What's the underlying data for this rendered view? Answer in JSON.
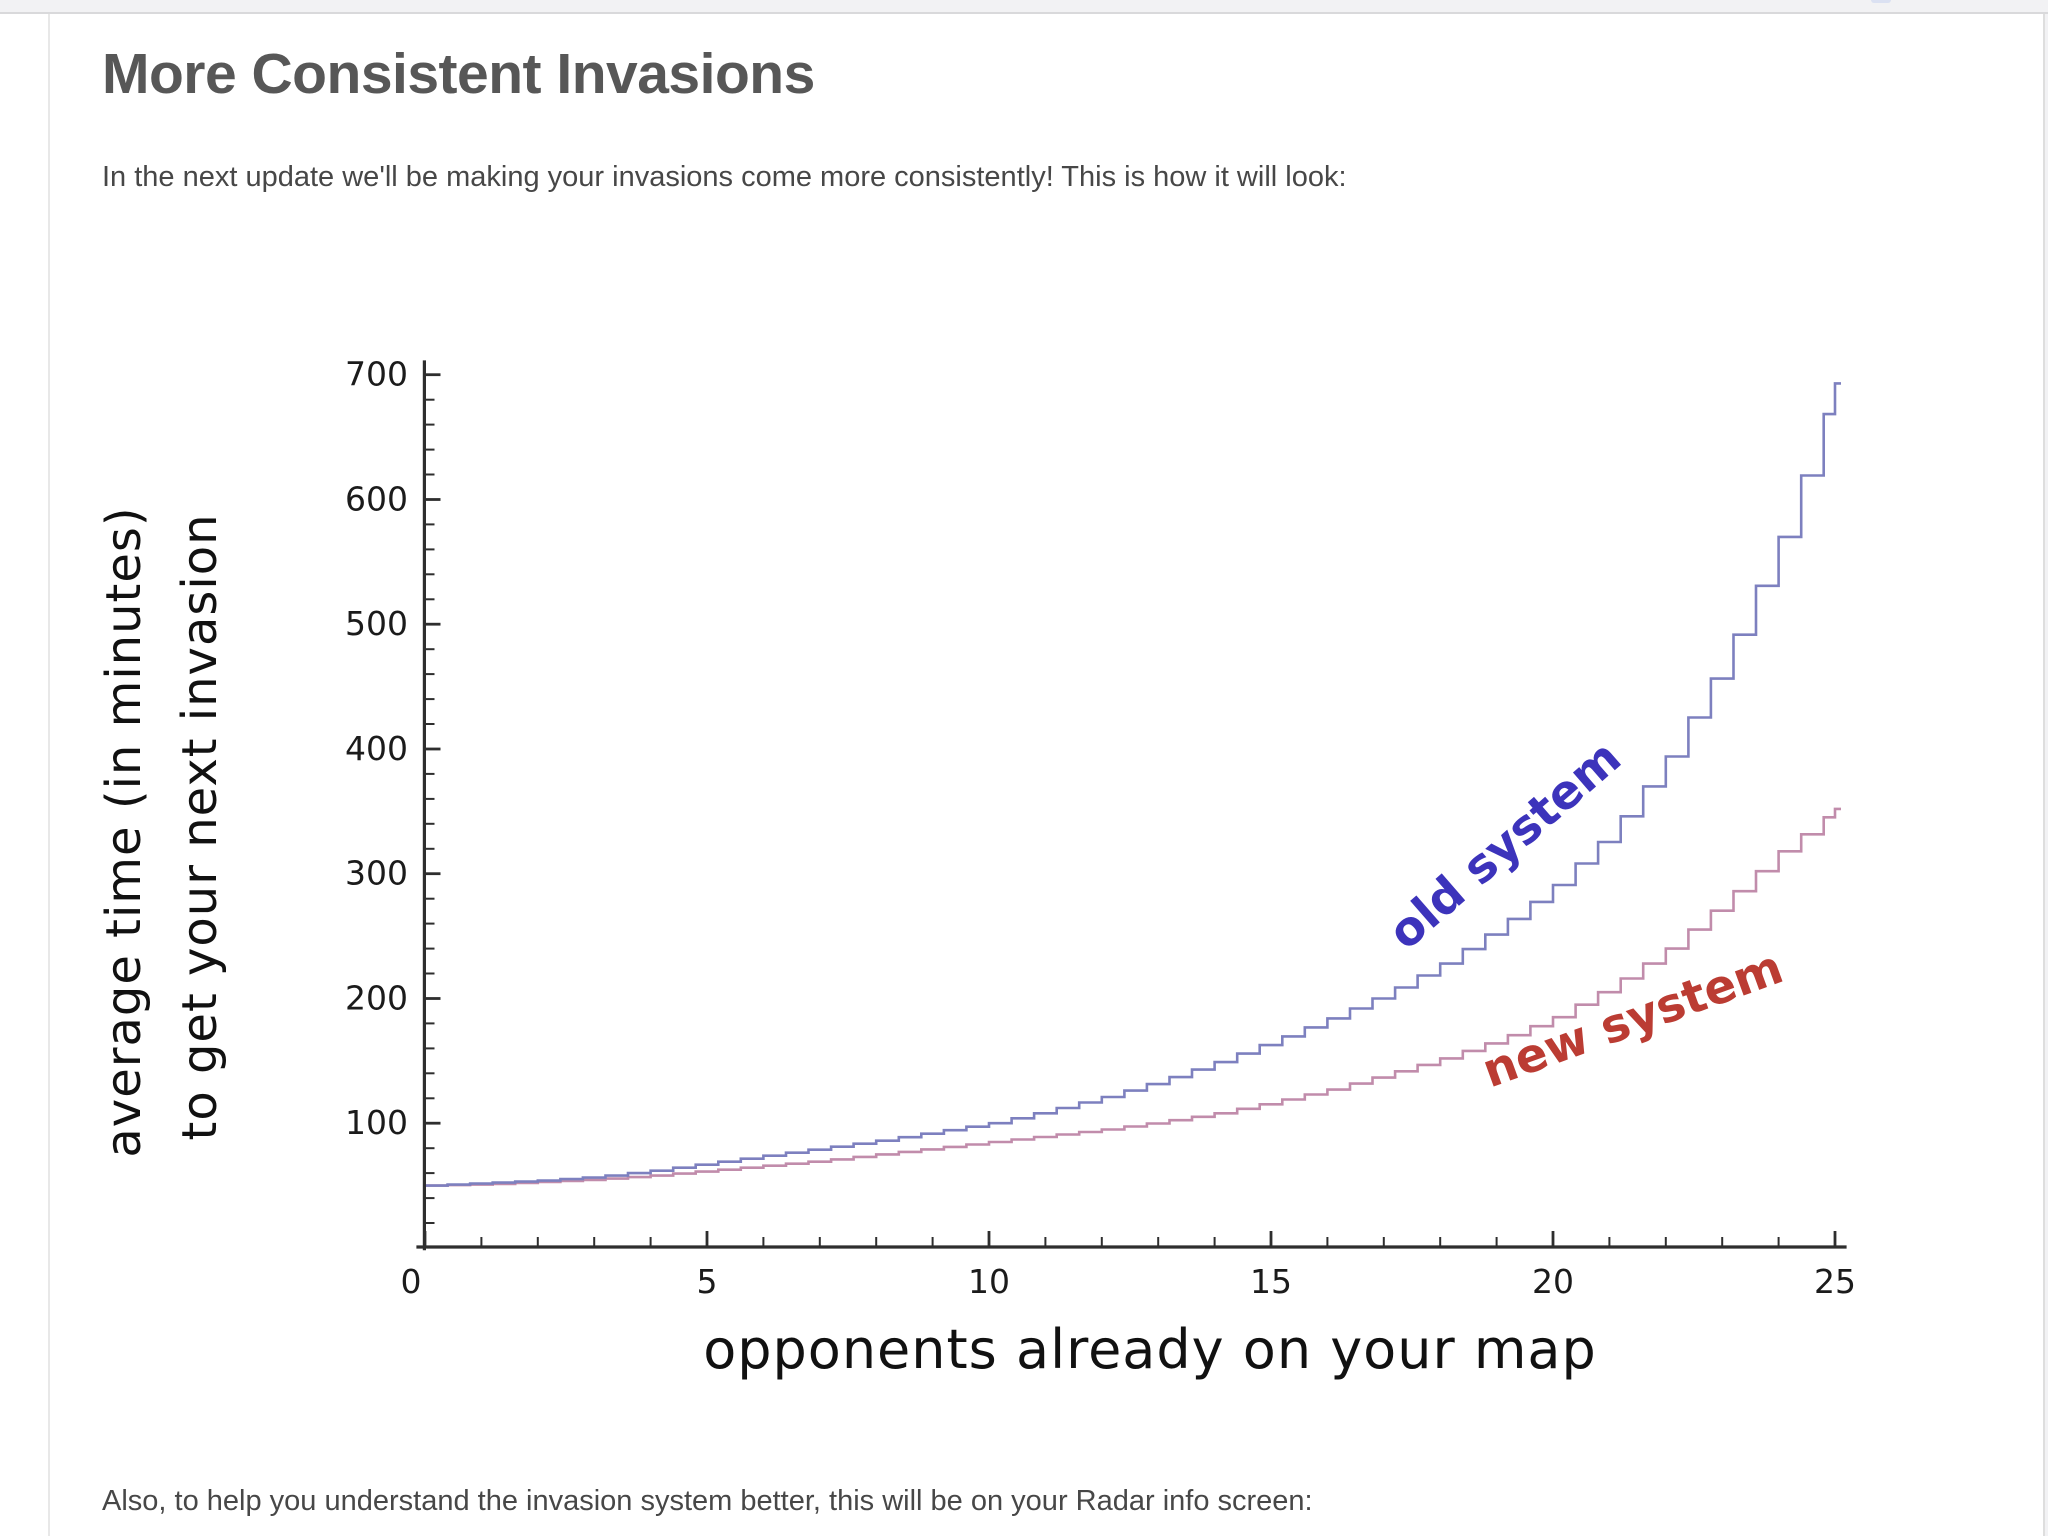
{
  "page": {
    "title": "More Consistent Invasions",
    "intro": "In the next update we'll be making your invasions come more consistently! This is how it will look:",
    "outro": "Also, to help you understand the invasion system better, this will be on your Radar info screen:"
  },
  "chart_data": {
    "type": "line",
    "style": "staircase",
    "title": "",
    "xlabel": "opponents already on your map",
    "ylabel_line1": "average time (in minutes)",
    "ylabel_line2": "to get your next invasion",
    "xlim": [
      0,
      25
    ],
    "ylim": [
      0,
      700
    ],
    "x_major_ticks": [
      0,
      5,
      10,
      15,
      20,
      25
    ],
    "y_major_ticks": [
      100,
      200,
      300,
      400,
      500,
      600,
      700
    ],
    "x_minor_step": 1,
    "y_minor_step": 20,
    "grid": "off",
    "legend_position": "labels-on-curves",
    "x": [
      0,
      1,
      2,
      3,
      4,
      5,
      6,
      7,
      8,
      9,
      10,
      11,
      12,
      13,
      14,
      15,
      16,
      17,
      18,
      19,
      20,
      21,
      22,
      23,
      24,
      25
    ],
    "series": [
      {
        "name": "old system",
        "label_color": "#3c33bb",
        "line_color": "#7d80bf",
        "values": [
          50,
          52,
          54,
          57,
          62,
          68,
          74,
          80,
          86,
          93,
          100,
          110,
          121,
          134,
          149,
          166,
          184,
          204,
          228,
          257,
          291,
          334,
          394,
          472,
          570,
          693
        ]
      },
      {
        "name": "new system",
        "label_color": "#bb3c33",
        "line_color": "#c18cab",
        "values": [
          50,
          51,
          53,
          55,
          58,
          62,
          66,
          70,
          75,
          80,
          85,
          90,
          95,
          101,
          108,
          117,
          127,
          139,
          152,
          167,
          185,
          210,
          240,
          278,
          318,
          352
        ]
      }
    ]
  },
  "colors": {
    "heading": "#575757",
    "body_text": "#474747",
    "axis": "#2e2e2e",
    "topbar_bg": "#f2f2f4",
    "divider": "#e8e8e8"
  }
}
